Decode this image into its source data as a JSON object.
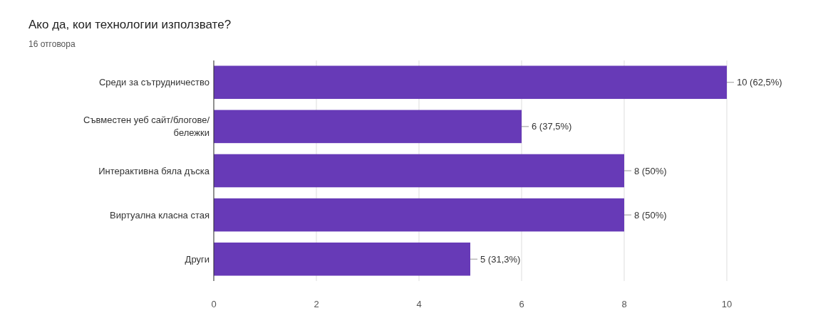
{
  "chart_data": {
    "type": "bar",
    "orientation": "horizontal",
    "title": "Ако да, кои технологии използвате?",
    "subtitle": "16 отговора",
    "categories": [
      "Среди за сътрудничество",
      "Съвместен уеб сайт/блогове/ бележки",
      "Интерактивна бяла дъска",
      "Виртуална класна стая",
      "Други"
    ],
    "values": [
      10,
      6,
      8,
      8,
      5
    ],
    "color": "#673ab7",
    "value_labels": [
      "10 (62,5%)",
      "6 (37,5%)",
      "8 (50%)",
      "8 (50%)",
      "5 (31,3%)"
    ],
    "xlim": [
      0,
      10
    ],
    "xticks": [
      0,
      2,
      4,
      6,
      8,
      10
    ],
    "grid": "x"
  }
}
